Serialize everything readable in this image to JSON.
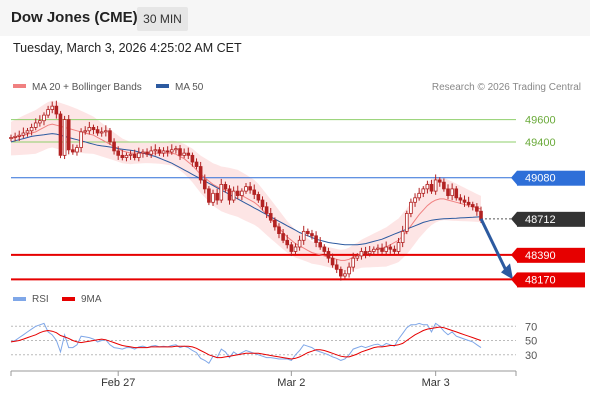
{
  "header": {
    "title": "Dow Jones (CME)",
    "interval": "30 MIN",
    "datetime": "Tuesday, March 3, 2026 4:25:02 AM CET"
  },
  "legend": {
    "ma20": "MA 20 + Bollinger Bands",
    "ma50": "MA 50",
    "credit": "Research © 2026 Trading Central",
    "rsi": "RSI",
    "rsi_ma": "9MA"
  },
  "colors": {
    "ma20": "#f08080",
    "ma50": "#2c5aa0",
    "bollinger_fill": "#fde0e0",
    "candle": "#b22222",
    "support": "#e60000",
    "resistance_green": "#8fcf6b",
    "pivot": "#2e6fd8",
    "current": "#333333",
    "arrow": "#2c5aa0"
  },
  "chart_data": {
    "type": "candlestick",
    "x_tick_labels": [
      "Feb 27",
      "Mar 2",
      "Mar 3"
    ],
    "ylim": [
      48120,
      49820
    ],
    "levels": [
      {
        "value": 49600,
        "label": "49600",
        "kind": "resistance-green"
      },
      {
        "value": 49400,
        "label": "49400",
        "kind": "resistance-green"
      },
      {
        "value": 49080,
        "label": "49080",
        "kind": "pivot"
      },
      {
        "value": 48712,
        "label": "48712",
        "kind": "current"
      },
      {
        "value": 48390,
        "label": "48390",
        "kind": "support"
      },
      {
        "value": 48170,
        "label": "48170",
        "kind": "support"
      }
    ],
    "close": [
      49440,
      49450,
      49460,
      49480,
      49500,
      49530,
      49570,
      49590,
      49640,
      49690,
      49720,
      49650,
      49280,
      49600,
      49330,
      49310,
      49350,
      49490,
      49500,
      49530,
      49510,
      49480,
      49490,
      49500,
      49400,
      49320,
      49280,
      49260,
      49280,
      49290,
      49260,
      49300,
      49310,
      49290,
      49320,
      49330,
      49300,
      49320,
      49310,
      49330,
      49340,
      49280,
      49300,
      49280,
      49220,
      49180,
      49060,
      48980,
      48860,
      48940,
      48880,
      49020,
      48980,
      48880,
      48960,
      48920,
      48960,
      49000,
      48970,
      48930,
      48880,
      48820,
      48760,
      48700,
      48640,
      48580,
      48520,
      48480,
      48420,
      48460,
      48520,
      48600,
      48580,
      48560,
      48500,
      48460,
      48420,
      48360,
      48300,
      48260,
      48200,
      48220,
      48280,
      48360,
      48380,
      48420,
      48400,
      48420,
      48440,
      48450,
      48420,
      48460,
      48440,
      48420,
      48500,
      48600,
      48760,
      48860,
      48900,
      48940,
      48980,
      49020,
      48960,
      49060,
      49040,
      48980,
      48920,
      48980,
      48900,
      48880,
      48860,
      48840,
      48820,
      48780,
      48700
    ],
    "ma20": [
      49430,
      49440,
      49450,
      49460,
      49470,
      49480,
      49490,
      49510,
      49530,
      49550,
      49560,
      49550,
      49540,
      49530,
      49520,
      49510,
      49500,
      49490,
      49480,
      49470,
      49460,
      49440,
      49420,
      49400,
      49380,
      49360,
      49340,
      49320,
      49310,
      49300,
      49300,
      49300,
      49300,
      49300,
      49300,
      49300,
      49300,
      49300,
      49300,
      49300,
      49290,
      49270,
      49250,
      49220,
      49190,
      49150,
      49110,
      49080,
      49050,
      49020,
      49000,
      48980,
      48970,
      48960,
      48950,
      48940,
      48920,
      48900,
      48880,
      48860,
      48830,
      48790,
      48750,
      48710,
      48670,
      48630,
      48590,
      48550,
      48520,
      48490,
      48470,
      48450,
      48430,
      48410,
      48400,
      48390,
      48380,
      48370,
      48360,
      48350,
      48340,
      48340,
      48350,
      48370,
      48380,
      48400,
      48410,
      48420,
      48430,
      48440,
      48450,
      48460,
      48480,
      48500,
      48520,
      48560,
      48600,
      48650,
      48700,
      48750,
      48790,
      48830,
      48860,
      48880,
      48890,
      48890,
      48880,
      48870,
      48860,
      48850,
      48840,
      48830,
      48820,
      48810,
      48800
    ],
    "ma50": [
      49400,
      49410,
      49420,
      49430,
      49440,
      49450,
      49455,
      49460,
      49465,
      49470,
      49475,
      49470,
      49460,
      49450,
      49440,
      49430,
      49420,
      49410,
      49400,
      49390,
      49380,
      49370,
      49365,
      49360,
      49355,
      49350,
      49340,
      49335,
      49330,
      49325,
      49320,
      49310,
      49300,
      49290,
      49280,
      49270,
      49255,
      49240,
      49225,
      49210,
      49190,
      49170,
      49150,
      49130,
      49110,
      49090,
      49070,
      49050,
      49030,
      49010,
      48990,
      48970,
      48950,
      48930,
      48910,
      48890,
      48870,
      48850,
      48830,
      48810,
      48790,
      48770,
      48750,
      48730,
      48710,
      48690,
      48670,
      48650,
      48630,
      48610,
      48590,
      48575,
      48560,
      48545,
      48530,
      48520,
      48510,
      48500,
      48495,
      48490,
      48485,
      48480,
      48480,
      48480,
      48480,
      48485,
      48490,
      48500,
      48510,
      48520,
      48530,
      48545,
      48560,
      48575,
      48590,
      48605,
      48620,
      48635,
      48650,
      48665,
      48680,
      48690,
      48700,
      48705,
      48710,
      48712,
      48714,
      48716,
      48718,
      48720,
      48722,
      48724,
      48726,
      48728,
      48730
    ],
    "rsi": [
      48,
      50,
      54,
      58,
      62,
      66,
      70,
      72,
      74,
      62,
      58,
      50,
      34,
      58,
      40,
      40,
      44,
      56,
      55,
      54,
      52,
      48,
      50,
      51,
      44,
      40,
      39,
      38,
      40,
      40,
      38,
      41,
      42,
      40,
      42,
      43,
      41,
      42,
      41,
      43,
      44,
      40,
      42,
      40,
      36,
      33,
      25,
      22,
      18,
      28,
      26,
      38,
      34,
      26,
      34,
      30,
      33,
      36,
      34,
      32,
      30,
      28,
      26,
      26,
      25,
      24,
      24,
      24,
      22,
      30,
      36,
      44,
      42,
      40,
      36,
      34,
      32,
      30,
      27,
      25,
      22,
      24,
      30,
      38,
      40,
      42,
      40,
      42,
      44,
      45,
      42,
      46,
      44,
      42,
      52,
      60,
      68,
      72,
      72,
      74,
      72,
      72,
      62,
      74,
      70,
      63,
      58,
      62,
      56,
      54,
      52,
      50,
      48,
      44,
      40
    ],
    "rsi_ma": [
      48,
      49,
      50,
      52,
      54,
      56,
      58,
      61,
      63,
      64,
      63,
      61,
      57,
      55,
      53,
      50,
      48,
      47,
      48,
      49,
      50,
      51,
      52,
      51,
      49,
      47,
      45,
      43,
      42,
      41,
      40,
      40,
      40,
      40,
      41,
      41,
      41,
      41,
      41,
      41,
      42,
      42,
      42,
      42,
      41,
      39,
      36,
      33,
      30,
      28,
      26,
      26,
      27,
      28,
      29,
      30,
      31,
      32,
      32,
      32,
      32,
      31,
      30,
      29,
      28,
      27,
      26,
      25,
      24,
      25,
      27,
      30,
      33,
      35,
      37,
      37,
      36,
      34,
      32,
      30,
      28,
      27,
      27,
      29,
      31,
      34,
      36,
      38,
      40,
      41,
      41,
      42,
      43,
      43,
      44,
      46,
      50,
      54,
      58,
      61,
      64,
      66,
      67,
      68,
      69,
      68,
      66,
      64,
      62,
      60,
      58,
      56,
      54,
      52,
      50
    ],
    "rsi_levels": [
      70,
      50,
      30
    ]
  }
}
